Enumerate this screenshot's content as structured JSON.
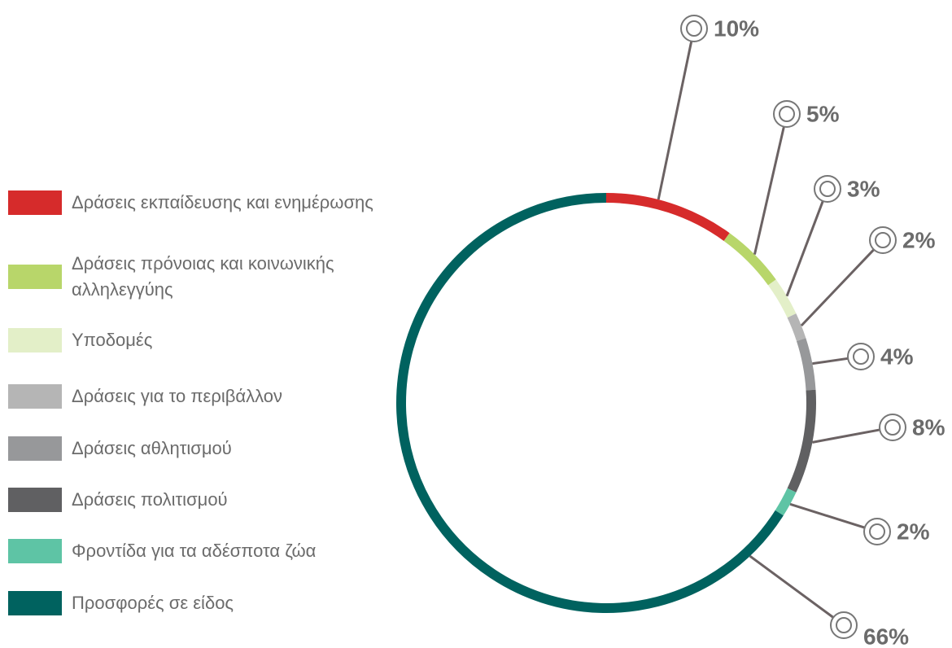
{
  "chart_data": {
    "type": "donut",
    "categories": [
      "Δράσεις εκπαίδευσης και ενημέρωσης",
      "Δράσεις πρόνοιας και κοινωνικής αλληλεγγύης",
      "Υποδομές",
      "Δράσεις για το περιβάλλον",
      "Δράσεις αθλητισμού",
      "Δράσεις πολιτισμού",
      "Φροντίδα για τα αδέσποτα ζώα",
      "Προσφορές σε είδος"
    ],
    "values": [
      10,
      5,
      3,
      2,
      4,
      8,
      2,
      66
    ],
    "value_labels": [
      "10%",
      "5%",
      "3%",
      "2%",
      "4%",
      "8%",
      "2%",
      "66%"
    ],
    "colors": [
      "#d62b2b",
      "#b8d66a",
      "#e3efc8",
      "#b5b5b5",
      "#97989a",
      "#606062",
      "#5ec4a5",
      "#00625f"
    ]
  }
}
